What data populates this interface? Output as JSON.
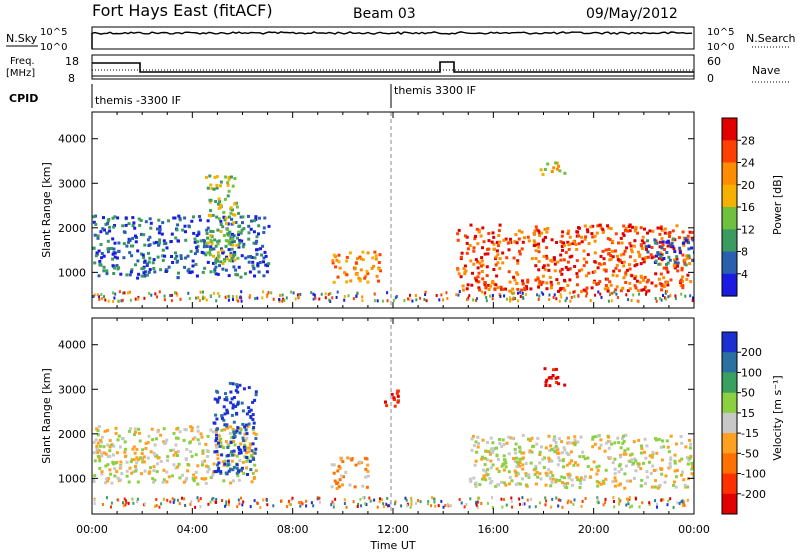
{
  "header": {
    "station": "Fort Hays East (fitACF)",
    "beam": "Beam 03",
    "date": "09/May/2012"
  },
  "top_panels": {
    "nsky_label": "N.Sky",
    "nsearch_label": "N.Search",
    "noise_ticks": [
      "10^5",
      "10^0"
    ],
    "freq_label": "Freq.",
    "freq_unit": "[MHz]",
    "freq_ticks": [
      "18",
      "8"
    ],
    "nave_label": "Nave",
    "nave_ticks": [
      "60",
      "0"
    ],
    "cpid_label": "CPID",
    "cpid_entries": [
      {
        "label": "themis -3300 IF",
        "start_hour": 0
      },
      {
        "label": "themis 3300 IF",
        "start_hour": 12
      }
    ]
  },
  "chart_data": [
    {
      "type": "heatmap",
      "xlabel": "Time UT",
      "ylabel": "Slant Range [km]",
      "x_ticks": [
        "00:00",
        "04:00",
        "08:00",
        "12:00",
        "16:00",
        "20:00",
        "00:00"
      ],
      "y_ticks": [
        1000,
        2000,
        3000,
        4000
      ],
      "xlim_hours": [
        0,
        24
      ],
      "ylim_km": [
        200,
        4600
      ],
      "colorbar": {
        "label": "Power [dB]",
        "ticks": [
          "28",
          "24",
          "20",
          "16",
          "12",
          "8",
          "4"
        ],
        "colors": [
          "#e00000",
          "#ff4000",
          "#ff8c00",
          "#f5b000",
          "#70c040",
          "#3a9a60",
          "#2a5fb0",
          "#1a1ae0"
        ]
      },
      "regions": [
        {
          "t0": 0.0,
          "t1": 7.0,
          "r0": 900,
          "r1": 2300,
          "level": 6
        },
        {
          "t0": 4.5,
          "t1": 5.8,
          "r0": 1200,
          "r1": 3200,
          "level": 4
        },
        {
          "t0": 9.5,
          "t1": 11.5,
          "r0": 800,
          "r1": 1500,
          "level": 2
        },
        {
          "t0": 14.5,
          "t1": 23.9,
          "r0": 600,
          "r1": 2100,
          "level": 1
        },
        {
          "t0": 17.8,
          "t1": 18.8,
          "r0": 3200,
          "r1": 3500,
          "level": 3
        },
        {
          "t0": 22.0,
          "t1": 24.0,
          "r0": 1200,
          "r1": 1800,
          "level": 6
        }
      ]
    },
    {
      "type": "heatmap",
      "xlabel": "Time UT",
      "ylabel": "Slant Range [km]",
      "x_ticks": [
        "00:00",
        "04:00",
        "08:00",
        "12:00",
        "16:00",
        "20:00",
        "00:00"
      ],
      "y_ticks": [
        1000,
        2000,
        3000,
        4000
      ],
      "xlim_hours": [
        0,
        24
      ],
      "ylim_km": [
        200,
        4600
      ],
      "colorbar": {
        "label": "Velocity [m s⁻¹]",
        "ticks": [
          "200",
          "100",
          "50",
          "15",
          "-15",
          "-50",
          "-100",
          "-200"
        ],
        "colors": [
          "#1a30d0",
          "#2a70a0",
          "#3aa060",
          "#8ad040",
          "#c8c8c8",
          "#ffa020",
          "#ff7000",
          "#ff3000",
          "#e00000"
        ]
      },
      "regions": [
        {
          "t0": 0.0,
          "t1": 6.5,
          "r0": 900,
          "r1": 2200,
          "level": 4
        },
        {
          "t0": 4.8,
          "t1": 6.5,
          "r0": 1100,
          "r1": 3200,
          "level": 0
        },
        {
          "t0": 9.5,
          "t1": 11.0,
          "r0": 800,
          "r1": 1500,
          "level": 5
        },
        {
          "t0": 11.5,
          "t1": 12.2,
          "r0": 2500,
          "r1": 3000,
          "level": 8
        },
        {
          "t0": 15.0,
          "t1": 24.0,
          "r0": 800,
          "r1": 2000,
          "level": 4
        },
        {
          "t0": 17.8,
          "t1": 18.8,
          "r0": 3100,
          "r1": 3500,
          "level": 8
        }
      ]
    }
  ]
}
